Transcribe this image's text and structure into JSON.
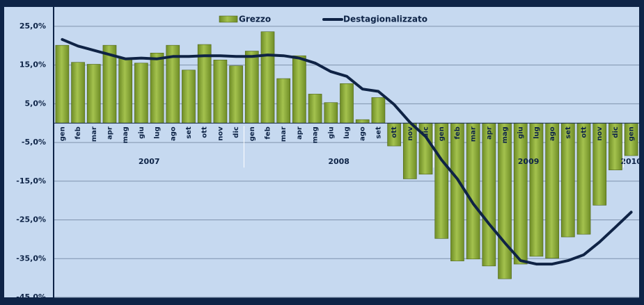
{
  "chart_data": {
    "type": "bar_line",
    "categories": [
      "gen",
      "feb",
      "mar",
      "apr",
      "mag",
      "giu",
      "lug",
      "ago",
      "set",
      "ott",
      "nov",
      "dic",
      "gen",
      "feb",
      "mar",
      "apr",
      "mag",
      "giu",
      "lug",
      "ago",
      "set",
      "ott",
      "nov",
      "dic",
      "gen",
      "feb",
      "mar",
      "apr",
      "mag",
      "giu",
      "lug",
      "ago",
      "set",
      "ott",
      "nov",
      "dic",
      "gen"
    ],
    "category_groups": [
      {
        "label": "2007",
        "size": 12
      },
      {
        "label": "2008",
        "size": 12
      },
      {
        "label": "2009",
        "size": 12
      },
      {
        "label": "2010",
        "size": 1
      }
    ],
    "series": [
      {
        "name": "Grezzo",
        "type": "bar",
        "color": "#8aa83a",
        "values": [
          20.1,
          15.7,
          15.2,
          20.1,
          16.8,
          15.5,
          18.1,
          20.1,
          13.7,
          20.3,
          16.3,
          14.8,
          18.6,
          23.6,
          11.5,
          17.4,
          7.5,
          5.3,
          10.2,
          0.9,
          6.6,
          -5.9,
          -14.4,
          -13.2,
          -29.8,
          -35.6,
          -35.1,
          -36.9,
          -40.2,
          -36.4,
          -34.4,
          -34.9,
          -29.4,
          -28.7,
          -21.2,
          -12.1,
          -8.4
        ]
      },
      {
        "name": "Destagionalizzato",
        "type": "line",
        "color": "#0f2345",
        "values": [
          21.6,
          19.9,
          18.8,
          17.7,
          16.6,
          16.8,
          16.6,
          17.2,
          17.2,
          17.4,
          17.4,
          17.2,
          17.2,
          17.6,
          17.4,
          16.8,
          15.5,
          13.3,
          12.1,
          8.8,
          8.2,
          4.8,
          0.2,
          -3.5,
          -9.5,
          -14.4,
          -20.8,
          -26.0,
          -30.9,
          -35.5,
          -36.4,
          -36.4,
          -35.5,
          -34.0,
          -30.7,
          -26.9,
          -23.0
        ]
      }
    ],
    "ylim": [
      -45,
      30
    ],
    "yticks": [
      {
        "value": 25,
        "label": "25,0%"
      },
      {
        "value": 15,
        "label": "15,0%"
      },
      {
        "value": 5,
        "label": "5,0%"
      },
      {
        "value": -5,
        "label": "-5,0%"
      },
      {
        "value": -15,
        "label": "-15,0%"
      },
      {
        "value": -25,
        "label": "-25,0%"
      },
      {
        "value": -35,
        "label": "-35,0%"
      },
      {
        "value": -45,
        "label": "-45,0%"
      }
    ],
    "grid": true,
    "legend": "top"
  }
}
